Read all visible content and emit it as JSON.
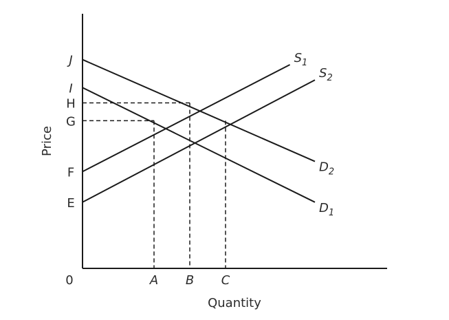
{
  "chart_data": {
    "type": "line",
    "xlabel": "Quantity",
    "ylabel": "Price",
    "xlim": [
      0,
      10
    ],
    "ylim": [
      0,
      10
    ],
    "grid": false,
    "origin_label": "0",
    "y_ticks": [
      {
        "label": "J",
        "value": 8.2
      },
      {
        "label": "I",
        "value": 7.1
      },
      {
        "label": "H",
        "value": 6.5
      },
      {
        "label": "G",
        "value": 5.8
      },
      {
        "label": "F",
        "value": 3.8
      },
      {
        "label": "E",
        "value": 2.6
      }
    ],
    "x_ticks": [
      {
        "label": "A",
        "value": 2.0
      },
      {
        "label": "B",
        "value": 3.0
      },
      {
        "label": "C",
        "value": 4.0
      }
    ],
    "series": [
      {
        "name": "S",
        "subscript": "1",
        "points": [
          [
            0,
            3.8
          ],
          [
            5.8,
            8.0
          ]
        ]
      },
      {
        "name": "S",
        "subscript": "2",
        "points": [
          [
            0,
            2.6
          ],
          [
            6.5,
            7.4
          ]
        ]
      },
      {
        "name": "D",
        "subscript": "2",
        "points": [
          [
            0,
            8.2
          ],
          [
            6.5,
            4.2
          ]
        ]
      },
      {
        "name": "D",
        "subscript": "1",
        "points": [
          [
            0,
            7.1
          ],
          [
            6.5,
            2.6
          ]
        ]
      }
    ],
    "guides": [
      {
        "from": "H",
        "to": "B"
      },
      {
        "from": "G",
        "to": "A"
      },
      {
        "x_tick": "C",
        "y": 5.8
      }
    ]
  }
}
